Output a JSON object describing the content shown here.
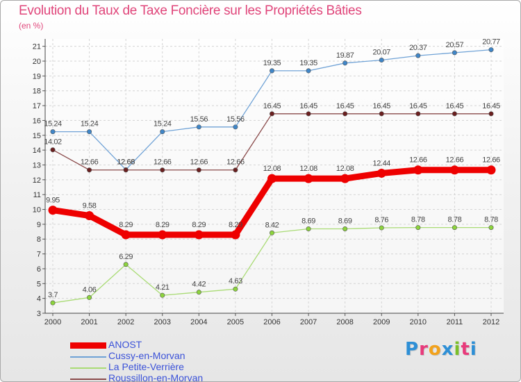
{
  "header": {
    "title": "Evolution du Taux de Taxe Foncière sur les Propriétés Bâties",
    "subtitle": "(en %)"
  },
  "logo": {
    "text": "Proxiti",
    "letters": [
      {
        "char": "P",
        "color": "#2d8fd6"
      },
      {
        "char": "r",
        "color": "#e83a7b"
      },
      {
        "char": "o",
        "color": "#f2a21c"
      },
      {
        "char": "x",
        "color": "#2d8fd6"
      },
      {
        "char": "i",
        "color": "#7bbf2a"
      },
      {
        "char": "t",
        "color": "#e83a7b"
      },
      {
        "char": "i",
        "color": "#2d8fd6"
      }
    ]
  },
  "chart_data": {
    "type": "line",
    "x": [
      "2000",
      "2001",
      "2002",
      "2003",
      "2004",
      "2005",
      "2006",
      "2007",
      "2008",
      "2009",
      "2010",
      "2011",
      "2012"
    ],
    "yticks": [
      3,
      4,
      5,
      6,
      7,
      8,
      9,
      10,
      11,
      12,
      13,
      14,
      15,
      16,
      17,
      18,
      19,
      20,
      21
    ],
    "ylim": [
      3,
      21.5
    ],
    "grid": true,
    "legend_placement": "bottom-left",
    "series": [
      {
        "name": "ANOST",
        "color": "#ee0000",
        "values": [
          9.95,
          9.58,
          8.29,
          8.29,
          8.29,
          8.29,
          12.08,
          12.08,
          12.08,
          12.44,
          12.66,
          12.66,
          12.66
        ],
        "labels": [
          "9.95",
          "9.58",
          "8.29",
          "8.29",
          "8.29",
          "8.29",
          "12.08",
          "12.08",
          "12.08",
          "12.44",
          "12.66",
          "12.66",
          "12.66"
        ]
      },
      {
        "name": "Cussy-en-Morvan",
        "color": "#6fa2d6",
        "marker_color": "#3f86c8",
        "values": [
          15.24,
          15.24,
          12.68,
          15.24,
          15.56,
          15.56,
          19.35,
          19.35,
          19.87,
          20.07,
          20.37,
          20.57,
          20.77
        ],
        "labels": [
          "15.24",
          "15.24",
          "12.68",
          "15.24",
          "15.56",
          "15.56",
          "19.35",
          "19.35",
          "19.87",
          "20.07",
          "20.37",
          "20.57",
          "20.77"
        ]
      },
      {
        "name": "La Petite-Verrière",
        "color": "#a9db74",
        "marker_color": "#8cd43c",
        "values": [
          3.7,
          4.06,
          6.29,
          4.21,
          4.42,
          4.63,
          8.42,
          8.69,
          8.69,
          8.76,
          8.78,
          8.78,
          8.78
        ],
        "labels": [
          "3.7",
          "4.06",
          "6.29",
          "4.21",
          "4.42",
          "4.63",
          "8.42",
          "8.69",
          "8.69",
          "8.76",
          "8.78",
          "8.78",
          "8.78"
        ]
      },
      {
        "name": "Roussillon-en-Morvan",
        "color": "#8a4a4a",
        "marker_color": "#6b1f1f",
        "values": [
          14.02,
          12.66,
          12.66,
          12.66,
          12.66,
          12.66,
          16.45,
          16.45,
          16.45,
          16.45,
          16.45,
          16.45,
          16.45
        ],
        "labels": [
          "14.02",
          "12.66",
          "12.66",
          "12.66",
          "12.66",
          "12.66",
          "16.45",
          "16.45",
          "16.45",
          "16.45",
          "16.45",
          "16.45",
          "16.45"
        ]
      }
    ]
  }
}
